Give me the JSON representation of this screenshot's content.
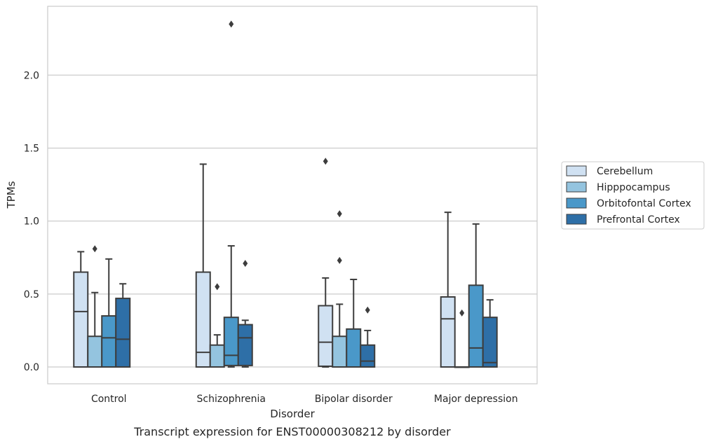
{
  "chart_data": {
    "type": "boxplot",
    "caption": "Transcript expression for ENST00000308212 by disorder",
    "xlabel": "Disorder",
    "ylabel": "TPMs",
    "ylim": [
      -0.115,
      2.475
    ],
    "yticks": [
      0.0,
      0.5,
      1.0,
      1.5,
      2.0
    ],
    "ytick_labels": [
      "0.0",
      "0.5",
      "1.0",
      "1.5",
      "2.0"
    ],
    "grid": "horizontal",
    "legend_placement": "right",
    "categories": [
      "Control",
      "Schizophrenia",
      "Bipolar disorder",
      "Major depression"
    ],
    "series": [
      {
        "name": "Cerebellum",
        "color": "#d0e1f2",
        "boxes": [
          {
            "whislo": 0.0,
            "q1": 0.0,
            "med": 0.38,
            "q3": 0.65,
            "whishi": 0.79,
            "fliers": []
          },
          {
            "whislo": 0.0,
            "q1": 0.0,
            "med": 0.1,
            "q3": 0.65,
            "whishi": 1.39,
            "fliers": []
          },
          {
            "whislo": 0.0,
            "q1": 0.005,
            "med": 0.17,
            "q3": 0.42,
            "whishi": 0.61,
            "fliers": [
              1.41
            ]
          },
          {
            "whislo": 0.0,
            "q1": 0.0,
            "med": 0.33,
            "q3": 0.48,
            "whishi": 1.06,
            "fliers": []
          }
        ]
      },
      {
        "name": "Hipppocampus",
        "color": "#94c4df",
        "boxes": [
          {
            "whislo": 0.0,
            "q1": 0.0,
            "med": 0.0,
            "q3": 0.21,
            "whishi": 0.51,
            "fliers": [
              0.81
            ]
          },
          {
            "whislo": 0.0,
            "q1": 0.0,
            "med": 0.0,
            "q3": 0.15,
            "whishi": 0.22,
            "fliers": [
              0.55
            ]
          },
          {
            "whislo": 0.0,
            "q1": 0.0,
            "med": 0.0,
            "q3": 0.21,
            "whishi": 0.43,
            "fliers": [
              0.73,
              1.05
            ]
          },
          {
            "whislo": 0.0,
            "q1": 0.0,
            "med": 0.0,
            "q3": 0.0,
            "whishi": 0.0,
            "fliers": [
              0.37
            ]
          }
        ]
      },
      {
        "name": "Orbitofontal Cortex",
        "color": "#4a98c9",
        "boxes": [
          {
            "whislo": 0.0,
            "q1": 0.0,
            "med": 0.2,
            "q3": 0.35,
            "whishi": 0.74,
            "fliers": []
          },
          {
            "whislo": 0.0,
            "q1": 0.01,
            "med": 0.08,
            "q3": 0.34,
            "whishi": 0.83,
            "fliers": [
              2.35
            ]
          },
          {
            "whislo": 0.0,
            "q1": 0.0,
            "med": 0.0,
            "q3": 0.26,
            "whishi": 0.6,
            "fliers": []
          },
          {
            "whislo": 0.0,
            "q1": 0.0,
            "med": 0.13,
            "q3": 0.56,
            "whishi": 0.98,
            "fliers": []
          }
        ]
      },
      {
        "name": "Prefrontal Cortex",
        "color": "#2e6fa7",
        "boxes": [
          {
            "whislo": 0.0,
            "q1": 0.0,
            "med": 0.19,
            "q3": 0.47,
            "whishi": 0.57,
            "fliers": []
          },
          {
            "whislo": 0.0,
            "q1": 0.01,
            "med": 0.2,
            "q3": 0.29,
            "whishi": 0.32,
            "fliers": [
              0.71
            ]
          },
          {
            "whislo": 0.0,
            "q1": 0.0,
            "med": 0.04,
            "q3": 0.15,
            "whishi": 0.25,
            "fliers": [
              0.39
            ]
          },
          {
            "whislo": 0.0,
            "q1": 0.0,
            "med": 0.03,
            "q3": 0.34,
            "whishi": 0.46,
            "fliers": []
          }
        ]
      }
    ]
  }
}
